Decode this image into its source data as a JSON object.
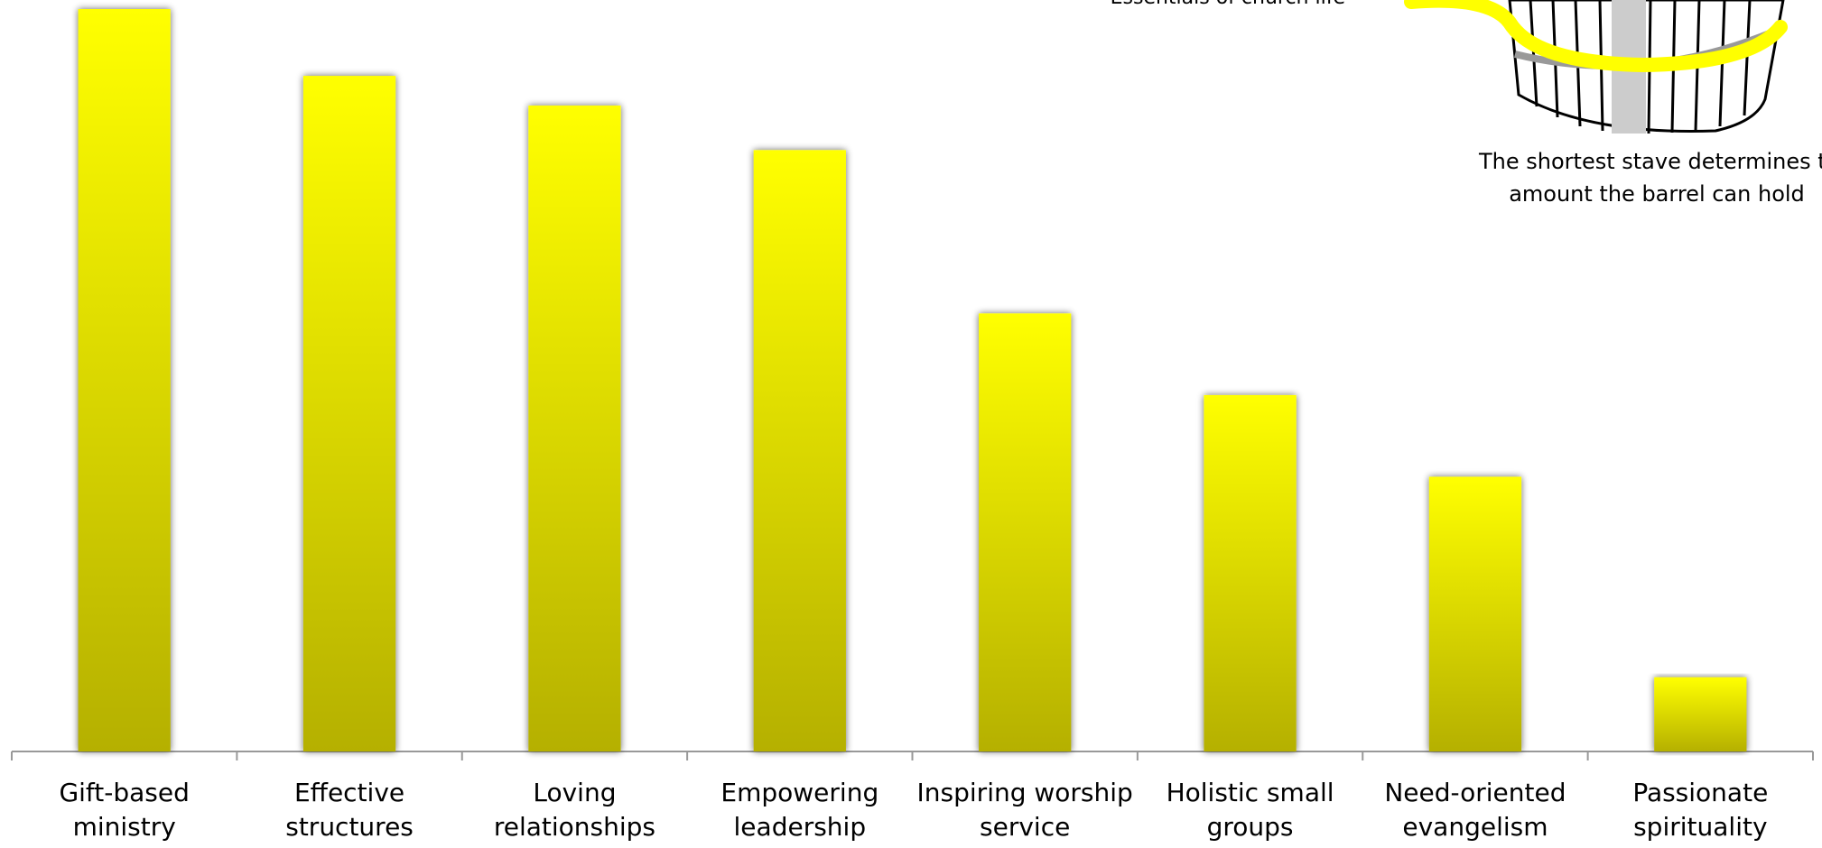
{
  "chart_data": {
    "type": "bar",
    "annotations": [
      "Essentials of church life",
      "The shortest stave determines the",
      "amount the barrel can hold"
    ],
    "categories": [
      "Gift-based ministry",
      "Effective structures",
      "Loving relationships",
      "Empowering leadership",
      "Inspiring worship service",
      "Holistic small groups",
      "Need-oriented evangelism",
      "Passionate spirituality"
    ],
    "values": [
      100,
      91,
      87,
      81,
      59,
      48,
      37,
      10
    ],
    "color": "#ffff00",
    "ylim": [
      0,
      100
    ]
  }
}
